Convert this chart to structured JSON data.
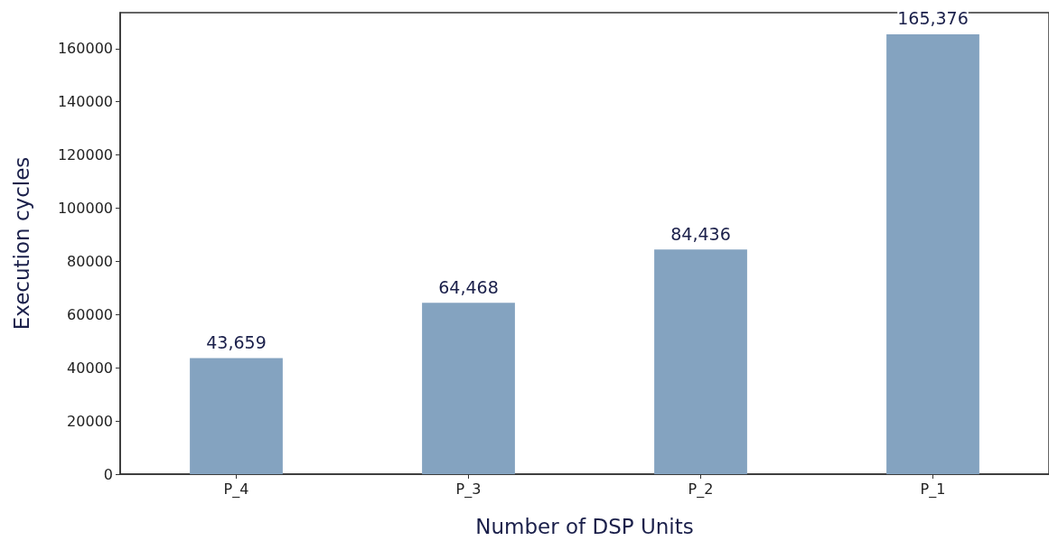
{
  "chart_data": {
    "type": "bar",
    "xlabel": "Number of DSP Units",
    "ylabel": "Execution cycles",
    "categories": [
      "P_4",
      "P_3",
      "P_2",
      "P_1"
    ],
    "values": [
      43659,
      64468,
      84436,
      165376
    ],
    "value_labels": [
      "43,659",
      "64,468",
      "84,436",
      "165,376"
    ],
    "color": "#84a3c0",
    "ylim": [
      0,
      173500
    ],
    "yticks": [
      0,
      20000,
      40000,
      60000,
      80000,
      100000,
      120000,
      140000,
      160000
    ],
    "grid": false
  }
}
